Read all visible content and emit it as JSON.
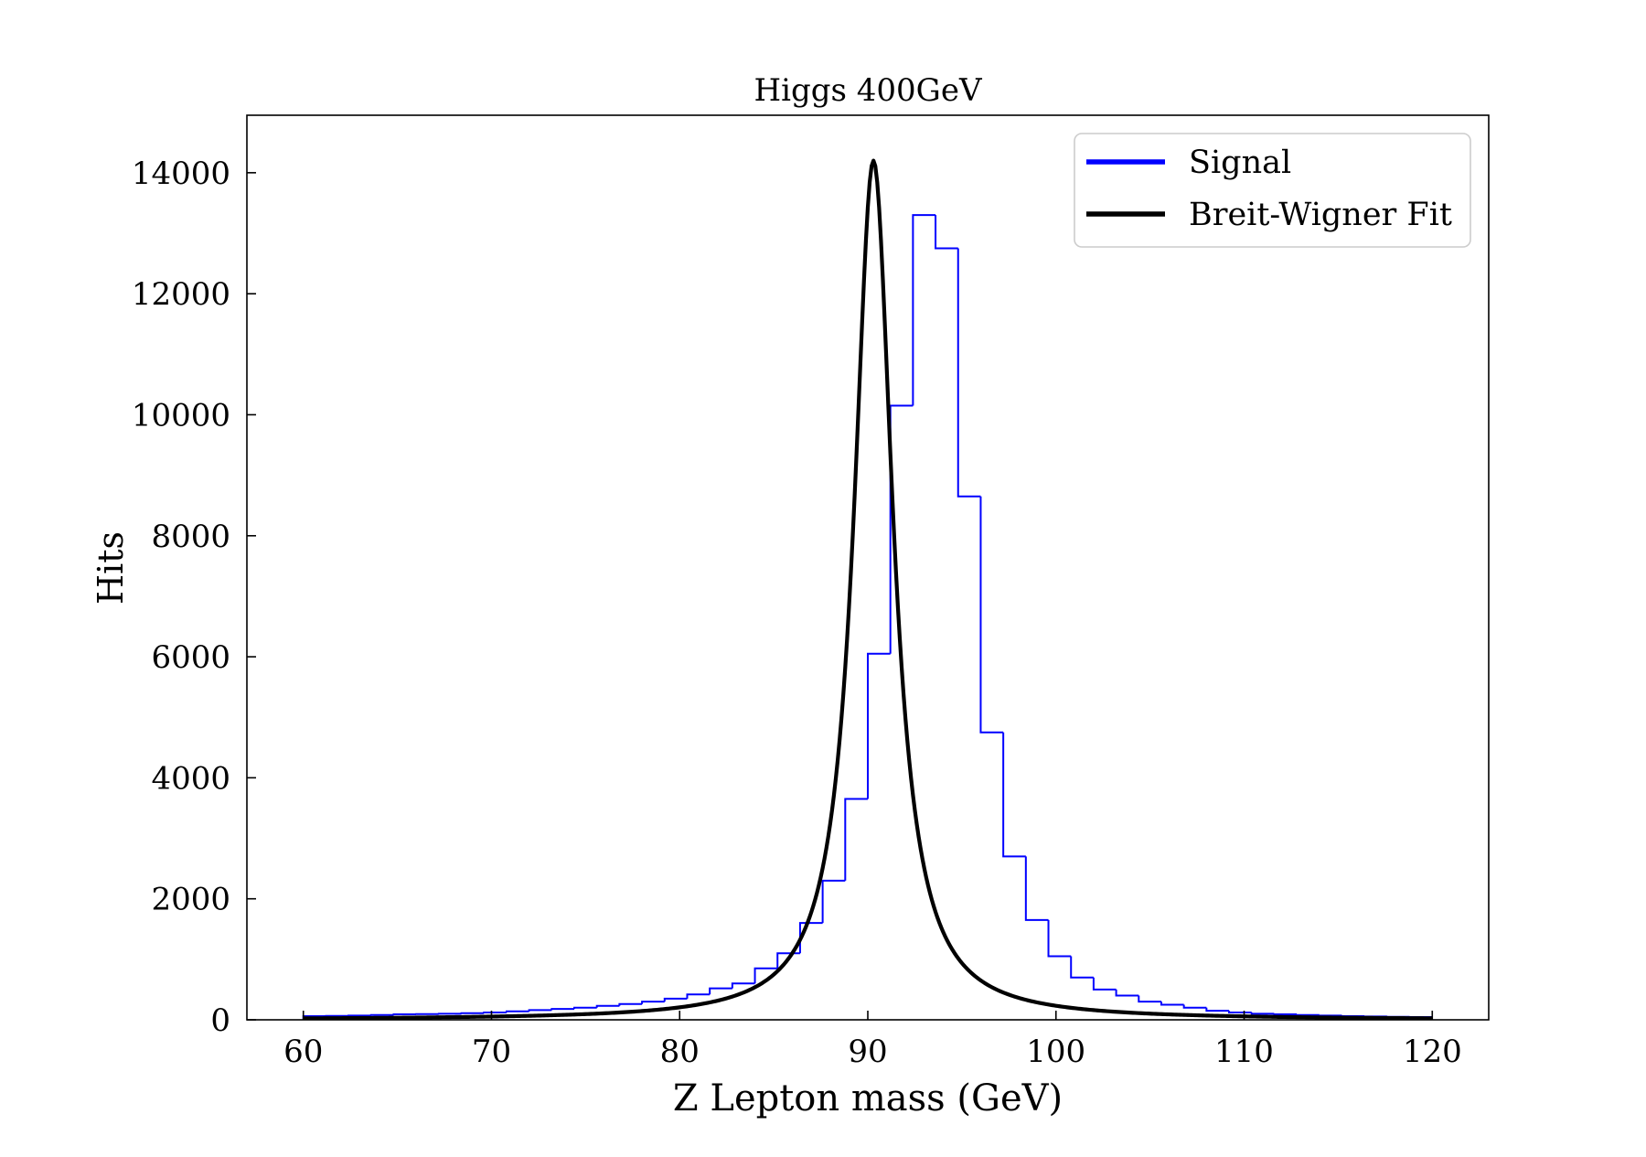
{
  "chart_data": {
    "type": "histogram",
    "title": "Higgs 400GeV",
    "xlabel": "Z Lepton mass (GeV)",
    "ylabel": "Hits",
    "xlim": [
      57,
      123
    ],
    "ylim": [
      0,
      14950
    ],
    "xticks": [
      60,
      70,
      80,
      90,
      100,
      110,
      120
    ],
    "yticks": [
      0,
      2000,
      4000,
      6000,
      8000,
      10000,
      12000,
      14000
    ],
    "grid": false,
    "legend": {
      "placement": "top-right",
      "entries": [
        "Signal",
        "Breit-Wigner Fit"
      ]
    },
    "series": [
      {
        "name": "Signal",
        "kind": "step-histogram",
        "color": "#0000ff",
        "bin_edges": [
          60.0,
          61.2,
          62.4,
          63.6,
          64.8,
          66.0,
          67.2,
          68.4,
          69.6,
          70.8,
          72.0,
          73.2,
          74.4,
          75.6,
          76.8,
          78.0,
          79.2,
          80.4,
          81.6,
          82.8,
          84.0,
          85.2,
          86.4,
          87.6,
          88.8,
          90.0,
          91.2,
          92.4,
          93.6,
          94.8,
          96.0,
          97.2,
          98.4,
          99.6,
          100.8,
          102.0,
          103.2,
          104.4,
          105.6,
          106.8,
          108.0,
          109.2,
          110.4,
          111.6,
          112.8,
          114.0,
          115.2,
          116.4,
          117.6,
          118.8,
          120.0
        ],
        "counts": [
          60,
          65,
          70,
          80,
          90,
          95,
          100,
          110,
          120,
          140,
          160,
          180,
          200,
          230,
          260,
          300,
          350,
          420,
          520,
          600,
          850,
          1100,
          1600,
          2300,
          3650,
          6050,
          10150,
          13300,
          12750,
          8650,
          4750,
          2700,
          1650,
          1050,
          700,
          500,
          400,
          300,
          250,
          200,
          150,
          120,
          100,
          90,
          80,
          70,
          60,
          55,
          50,
          45
        ]
      },
      {
        "name": "Breit-Wigner Fit",
        "kind": "line",
        "color": "#000000",
        "x_range": [
          60,
          120
        ],
        "mass": 90.3,
        "width": 2.5,
        "peak": 14200,
        "samples": 600
      }
    ]
  }
}
